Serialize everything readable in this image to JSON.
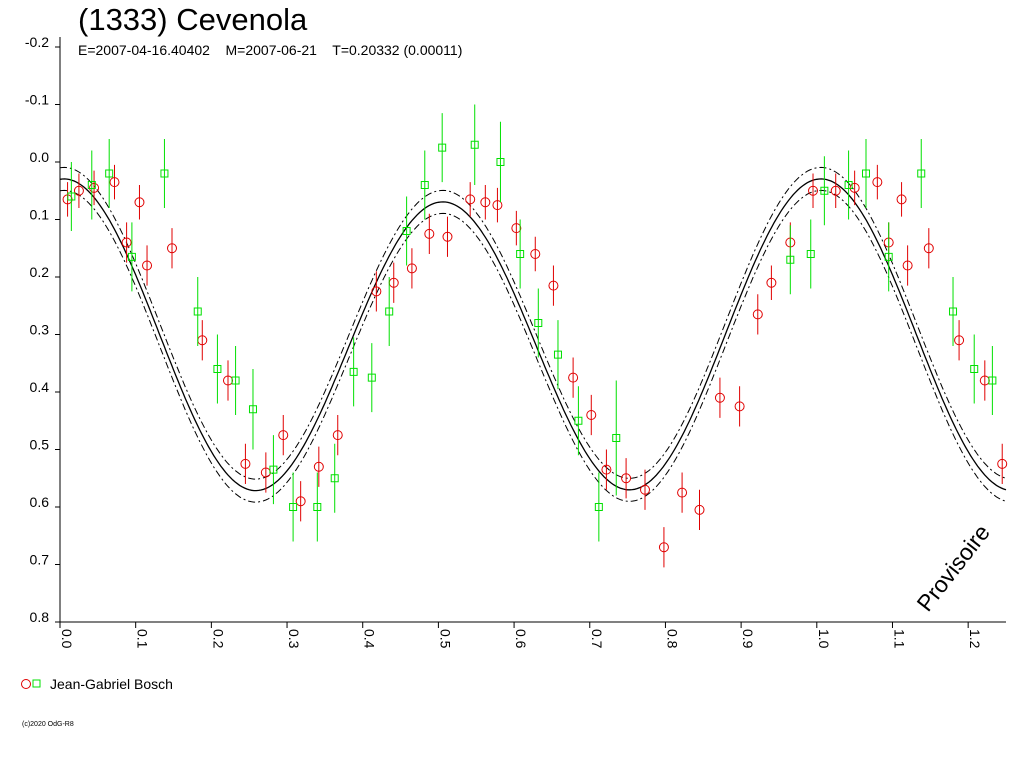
{
  "header": {
    "title": "(1333) Cevenola",
    "subtitle": "E=2007-04-16.40402    M=2007-06-21    T=0.20332 (0.00011)"
  },
  "watermark": "Provisoire",
  "legend": {
    "label": "Jean-Gabriel Bosch"
  },
  "footer": {
    "copyright": "(c)2020 OdG-R8"
  },
  "colors": {
    "series_circles": "#e00000",
    "series_squares": "#00e000",
    "fit": "#000000"
  },
  "chart_data": {
    "type": "scatter",
    "xlim": [
      0,
      1.25
    ],
    "ylim": [
      -0.2,
      0.8
    ],
    "y_inverted": true,
    "x_ticks": [
      "0.0",
      "0.1",
      "0.2",
      "0.3",
      "0.4",
      "0.5",
      "0.6",
      "0.7",
      "0.8",
      "0.9",
      "1.0",
      "1.1",
      "1.2"
    ],
    "y_ticks": [
      "-0.2",
      "-0.1",
      "0.0",
      "0.1",
      "0.2",
      "0.3",
      "0.4",
      "0.5",
      "0.6",
      "0.7",
      "0.8"
    ],
    "fit_curve": {
      "mean": 0.31,
      "harmonics": [
        {
          "order": 1,
          "cos": -0.02,
          "sin": 0.0
        },
        {
          "order": 2,
          "cos": -0.26,
          "sin": -0.018
        }
      ],
      "envelope": 0.02
    },
    "series": [
      {
        "marker": "circle",
        "color": "#e00000",
        "points": [
          [
            0.01,
            0.065,
            0.03
          ],
          [
            0.025,
            0.05,
            0.03
          ],
          [
            0.045,
            0.045,
            0.03
          ],
          [
            0.072,
            0.035,
            0.03
          ],
          [
            0.088,
            0.14,
            0.035
          ],
          [
            0.105,
            0.07,
            0.03
          ],
          [
            0.115,
            0.18,
            0.035
          ],
          [
            0.148,
            0.15,
            0.035
          ],
          [
            0.188,
            0.31,
            0.035
          ],
          [
            0.222,
            0.38,
            0.035
          ],
          [
            0.245,
            0.525,
            0.035
          ],
          [
            0.272,
            0.54,
            0.035
          ],
          [
            0.295,
            0.475,
            0.035
          ],
          [
            0.318,
            0.59,
            0.035
          ],
          [
            0.342,
            0.53,
            0.035
          ],
          [
            0.367,
            0.475,
            0.035
          ],
          [
            0.418,
            0.225,
            0.035
          ],
          [
            0.441,
            0.21,
            0.035
          ],
          [
            0.465,
            0.185,
            0.035
          ],
          [
            0.488,
            0.125,
            0.035
          ],
          [
            0.512,
            0.13,
            0.035
          ],
          [
            0.542,
            0.065,
            0.03
          ],
          [
            0.562,
            0.07,
            0.03
          ],
          [
            0.578,
            0.075,
            0.03
          ],
          [
            0.603,
            0.115,
            0.03
          ],
          [
            0.628,
            0.16,
            0.03
          ],
          [
            0.652,
            0.215,
            0.035
          ],
          [
            0.678,
            0.375,
            0.035
          ],
          [
            0.702,
            0.44,
            0.035
          ],
          [
            0.722,
            0.535,
            0.035
          ],
          [
            0.748,
            0.55,
            0.035
          ],
          [
            0.773,
            0.57,
            0.035
          ],
          [
            0.798,
            0.67,
            0.035
          ],
          [
            0.822,
            0.575,
            0.035
          ],
          [
            0.845,
            0.605,
            0.035
          ],
          [
            0.872,
            0.41,
            0.035
          ],
          [
            0.898,
            0.425,
            0.035
          ],
          [
            0.922,
            0.265,
            0.035
          ],
          [
            0.94,
            0.21,
            0.03
          ],
          [
            0.965,
            0.14,
            0.035
          ],
          [
            0.995,
            0.05,
            0.03
          ],
          [
            1.025,
            0.05,
            0.03
          ],
          [
            1.05,
            0.045,
            0.03
          ],
          [
            1.08,
            0.035,
            0.03
          ],
          [
            1.095,
            0.14,
            0.035
          ],
          [
            1.112,
            0.065,
            0.03
          ],
          [
            1.12,
            0.18,
            0.035
          ],
          [
            1.148,
            0.15,
            0.035
          ],
          [
            1.188,
            0.31,
            0.035
          ],
          [
            1.222,
            0.38,
            0.035
          ],
          [
            1.245,
            0.525,
            0.035
          ]
        ]
      },
      {
        "marker": "square",
        "color": "#00e000",
        "points": [
          [
            0.015,
            0.06,
            0.06
          ],
          [
            0.042,
            0.04,
            0.06
          ],
          [
            0.065,
            0.02,
            0.06
          ],
          [
            0.095,
            0.165,
            0.06
          ],
          [
            0.138,
            0.02,
            0.06
          ],
          [
            0.182,
            0.26,
            0.06
          ],
          [
            0.208,
            0.36,
            0.06
          ],
          [
            0.232,
            0.38,
            0.06
          ],
          [
            0.255,
            0.43,
            0.07
          ],
          [
            0.282,
            0.535,
            0.06
          ],
          [
            0.308,
            0.6,
            0.06
          ],
          [
            0.34,
            0.6,
            0.06
          ],
          [
            0.363,
            0.55,
            0.06
          ],
          [
            0.388,
            0.365,
            0.06
          ],
          [
            0.412,
            0.375,
            0.06
          ],
          [
            0.435,
            0.26,
            0.06
          ],
          [
            0.458,
            0.12,
            0.06
          ],
          [
            0.482,
            0.04,
            0.06
          ],
          [
            0.505,
            -0.025,
            0.06
          ],
          [
            0.548,
            -0.03,
            0.07
          ],
          [
            0.582,
            0.0,
            0.07
          ],
          [
            0.608,
            0.16,
            0.06
          ],
          [
            0.632,
            0.28,
            0.06
          ],
          [
            0.658,
            0.335,
            0.06
          ],
          [
            0.685,
            0.45,
            0.06
          ],
          [
            0.712,
            0.6,
            0.06
          ],
          [
            0.735,
            0.48,
            0.1
          ],
          [
            0.965,
            0.17,
            0.06
          ],
          [
            0.992,
            0.16,
            0.06
          ],
          [
            1.01,
            0.05,
            0.06
          ],
          [
            1.042,
            0.04,
            0.06
          ],
          [
            1.065,
            0.02,
            0.06
          ],
          [
            1.095,
            0.165,
            0.06
          ],
          [
            1.138,
            0.02,
            0.06
          ],
          [
            1.18,
            0.26,
            0.06
          ],
          [
            1.208,
            0.36,
            0.06
          ],
          [
            1.232,
            0.38,
            0.06
          ]
        ]
      }
    ]
  }
}
